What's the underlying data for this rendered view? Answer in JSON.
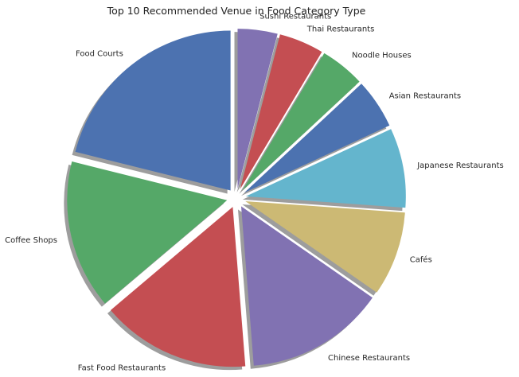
{
  "chart_data": {
    "type": "pie",
    "title": "Top 10 Recommended Venue in Food Category Type",
    "categories": [
      "Sushi Restaurants",
      "Thai Restaurants",
      "Noodle Houses",
      "Asian Restaurants",
      "Japanese Restaurants",
      "Cafés",
      "Chinese Restaurants",
      "Fast Food Restaurants",
      "Coffee Shops",
      "Food Courts"
    ],
    "values": [
      4,
      4.5,
      4.5,
      5,
      8,
      8.5,
      14,
      15,
      15,
      21
    ],
    "colors": [
      "#8172b2",
      "#c44e52",
      "#55a868",
      "#4c72b0",
      "#64b5cd",
      "#ccb974",
      "#8172b2",
      "#c44e52",
      "#55a868",
      "#4c72b0"
    ],
    "start_angle": 90,
    "direction": "clockwise",
    "exploded": true,
    "shadow": true
  }
}
